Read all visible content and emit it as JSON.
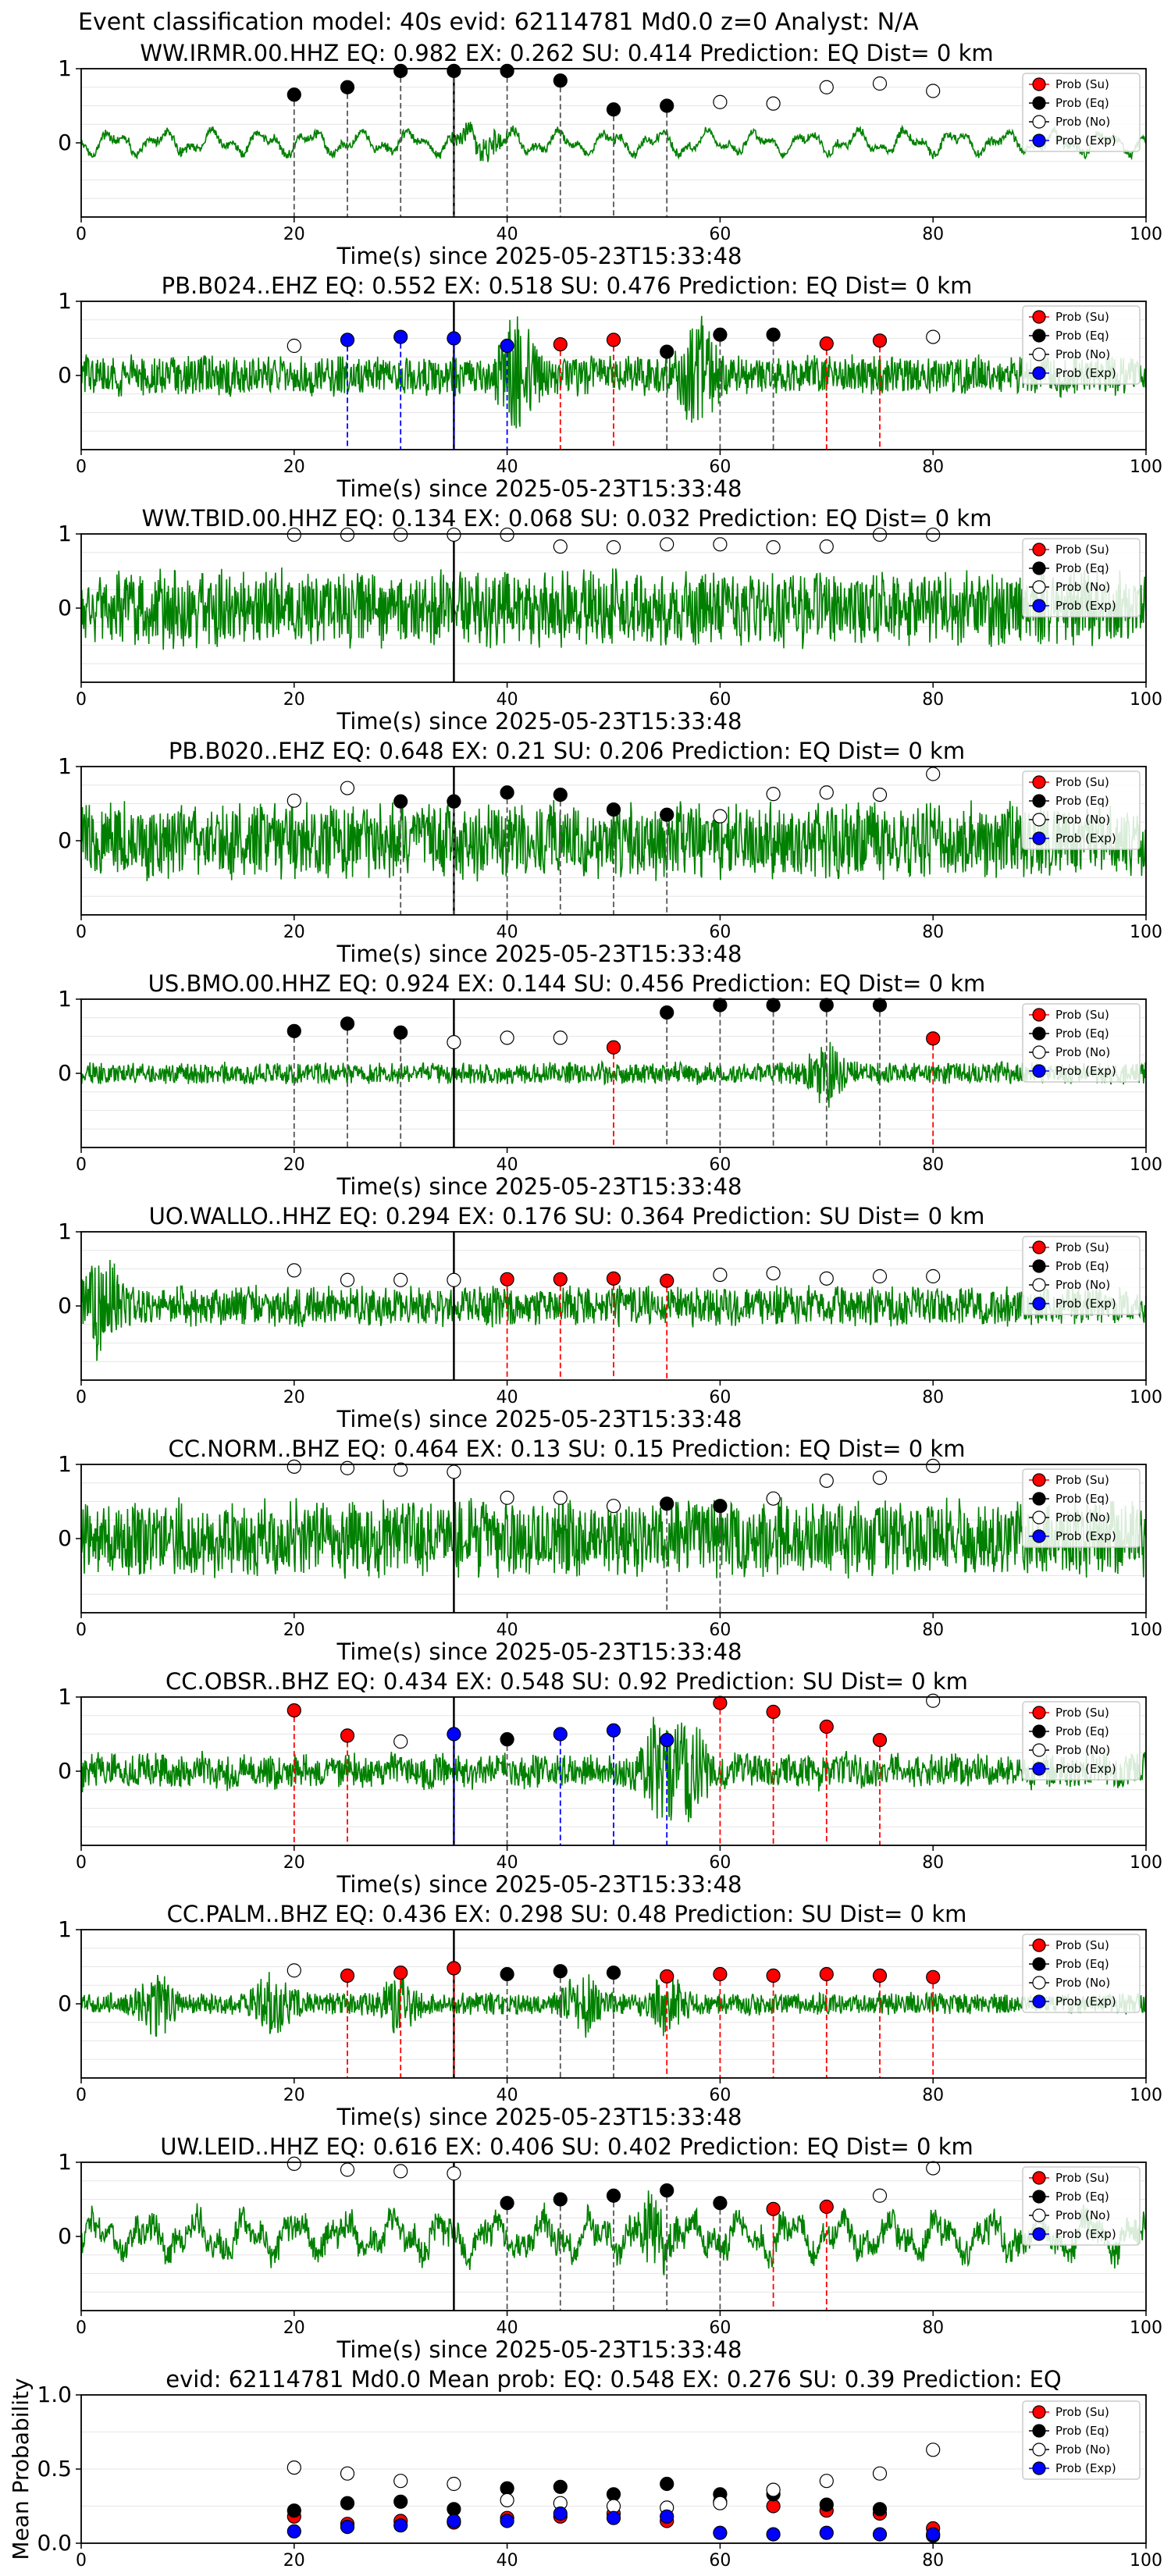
{
  "figure_title": "Event classification model: 40s evid: 62114781 Md0.0 z=0 Analyst: N/A",
  "legend_labels": [
    "Prob (Su)",
    "Prob (Eq)",
    "Prob (No)",
    "Prob (Exp)"
  ],
  "colors": {
    "Su": "#ff0000",
    "Eq": "#000000",
    "No": "#ffffff",
    "Exp": "#0000ff",
    "waveform": "#008000"
  },
  "chart_data": [
    {
      "type": "line",
      "station": "WW.IRMR.00.HHZ",
      "title": "WW.IRMR.00.HHZ   EQ: 0.982  EX: 0.262  SU: 0.414   Prediction: EQ    Dist= 0 km",
      "xlabel": "Time(s) since 2025-05-23T15:33:48",
      "xlim": [
        0,
        100
      ],
      "ylim": [
        -1,
        1
      ],
      "x_ticks": [
        0,
        20,
        40,
        60,
        80,
        100
      ],
      "y_ticks": [
        1,
        0
      ],
      "waveform_style": "oscillatory",
      "burst_times": [
        36.5,
        38.5
      ],
      "window_starts": [
        20,
        25,
        30,
        35,
        40,
        45,
        50,
        55,
        60,
        65,
        70,
        75,
        80
      ],
      "predicted": [
        "Eq",
        "Eq",
        "Eq",
        "Eq",
        "Eq",
        "Eq",
        "Eq",
        "Eq",
        "No",
        "No",
        "No",
        "No",
        "No"
      ],
      "max_prob": [
        0.65,
        0.75,
        0.97,
        0.97,
        0.97,
        0.84,
        0.45,
        0.5,
        0.55,
        0.53,
        0.75,
        0.8,
        0.7
      ]
    },
    {
      "type": "line",
      "station": "PB.B024..EHZ",
      "title": "PB.B024..EHZ   EQ: 0.552  EX: 0.518  SU: 0.476   Prediction: EQ    Dist= 0 km",
      "xlabel": "Time(s) since 2025-05-23T15:33:48",
      "xlim": [
        0,
        100
      ],
      "ylim": [
        -1,
        1
      ],
      "x_ticks": [
        0,
        20,
        40,
        60,
        80,
        100
      ],
      "y_ticks": [
        1,
        0
      ],
      "waveform_style": "noisy",
      "burst_times": [
        41,
        58
      ],
      "window_starts": [
        20,
        25,
        30,
        35,
        40,
        45,
        50,
        55,
        60,
        65,
        70,
        75,
        80
      ],
      "predicted": [
        "No",
        "Exp",
        "Exp",
        "Exp",
        "Exp",
        "Su",
        "Su",
        "Eq",
        "Eq",
        "Eq",
        "Su",
        "Su",
        "No"
      ],
      "max_prob": [
        0.4,
        0.48,
        0.52,
        0.5,
        0.4,
        0.42,
        0.48,
        0.32,
        0.55,
        0.55,
        0.43,
        0.47,
        0.52
      ]
    },
    {
      "type": "line",
      "station": "WW.TBID.00.HHZ",
      "title": "WW.TBID.00.HHZ   EQ: 0.134  EX: 0.068  SU: 0.032   Prediction: EQ    Dist= 0 km",
      "xlabel": "Time(s) since 2025-05-23T15:33:48",
      "xlim": [
        0,
        100
      ],
      "ylim": [
        -1,
        1
      ],
      "x_ticks": [
        0,
        20,
        40,
        60,
        80,
        100
      ],
      "y_ticks": [
        1,
        0
      ],
      "waveform_style": "strong",
      "burst_times": [],
      "window_starts": [
        20,
        25,
        30,
        35,
        40,
        45,
        50,
        55,
        60,
        65,
        70,
        75,
        80
      ],
      "predicted": [
        "No",
        "No",
        "No",
        "No",
        "No",
        "No",
        "No",
        "No",
        "No",
        "No",
        "No",
        "No",
        "No"
      ],
      "max_prob": [
        0.99,
        0.99,
        0.99,
        0.99,
        0.99,
        0.83,
        0.82,
        0.86,
        0.86,
        0.82,
        0.83,
        0.99,
        0.99
      ]
    },
    {
      "type": "line",
      "station": "PB.B020..EHZ",
      "title": "PB.B020..EHZ   EQ: 0.648  EX: 0.21  SU: 0.206   Prediction: EQ    Dist= 0 km",
      "xlabel": "Time(s) since 2025-05-23T15:33:48",
      "xlim": [
        0,
        100
      ],
      "ylim": [
        -1,
        1
      ],
      "x_ticks": [
        0,
        20,
        40,
        60,
        80,
        100
      ],
      "y_ticks": [
        1,
        0
      ],
      "waveform_style": "strong",
      "burst_times": [],
      "window_starts": [
        20,
        25,
        30,
        35,
        40,
        45,
        50,
        55,
        60,
        65,
        70,
        75,
        80
      ],
      "predicted": [
        "No",
        "No",
        "Eq",
        "Eq",
        "Eq",
        "Eq",
        "Eq",
        "Eq",
        "No",
        "No",
        "No",
        "No",
        "No"
      ],
      "max_prob": [
        0.54,
        0.71,
        0.53,
        0.53,
        0.65,
        0.62,
        0.42,
        0.35,
        0.33,
        0.63,
        0.65,
        0.62,
        0.9
      ]
    },
    {
      "type": "line",
      "station": "US.BMO.00.HHZ",
      "title": "US.BMO.00.HHZ   EQ: 0.924  EX: 0.144  SU: 0.456   Prediction: EQ    Dist= 0 km",
      "xlabel": "Time(s) since 2025-05-23T15:33:48",
      "xlim": [
        0,
        100
      ],
      "ylim": [
        -1,
        1
      ],
      "x_ticks": [
        0,
        20,
        40,
        60,
        80,
        100
      ],
      "y_ticks": [
        1,
        0
      ],
      "waveform_style": "quiet",
      "burst_times": [
        70
      ],
      "window_starts": [
        20,
        25,
        30,
        35,
        40,
        45,
        50,
        55,
        60,
        65,
        70,
        75,
        80
      ],
      "predicted": [
        "Eq",
        "Eq",
        "Eq",
        "No",
        "No",
        "No",
        "Su",
        "Eq",
        "Eq",
        "Eq",
        "Eq",
        "Eq",
        "Su"
      ],
      "max_prob": [
        0.57,
        0.67,
        0.55,
        0.42,
        0.48,
        0.48,
        0.35,
        0.82,
        0.92,
        0.92,
        0.92,
        0.92,
        0.47
      ]
    },
    {
      "type": "line",
      "station": "UO.WALLO..HHZ",
      "title": "UO.WALLO..HHZ   EQ: 0.294  EX: 0.176  SU: 0.364   Prediction: SU    Dist= 0 km",
      "xlabel": "Time(s) since 2025-05-23T15:33:48",
      "xlim": [
        0,
        100
      ],
      "ylim": [
        -1,
        1
      ],
      "x_ticks": [
        0,
        20,
        40,
        60,
        80,
        100
      ],
      "y_ticks": [
        1,
        0
      ],
      "waveform_style": "noisy",
      "burst_times": [
        2
      ],
      "window_starts": [
        20,
        25,
        30,
        35,
        40,
        45,
        50,
        55,
        60,
        65,
        70,
        75,
        80
      ],
      "predicted": [
        "No",
        "No",
        "No",
        "No",
        "Su",
        "Su",
        "Su",
        "Su",
        "No",
        "No",
        "No",
        "No",
        "No"
      ],
      "max_prob": [
        0.48,
        0.35,
        0.35,
        0.35,
        0.36,
        0.36,
        0.37,
        0.34,
        0.42,
        0.44,
        0.37,
        0.4,
        0.4
      ]
    },
    {
      "type": "line",
      "station": "CC.NORM..BHZ",
      "title": "CC.NORM..BHZ   EQ: 0.464  EX: 0.13  SU: 0.15   Prediction: EQ    Dist= 0 km",
      "xlabel": "Time(s) since 2025-05-23T15:33:48",
      "xlim": [
        0,
        100
      ],
      "ylim": [
        -1,
        1
      ],
      "x_ticks": [
        0,
        20,
        40,
        60,
        80,
        100
      ],
      "y_ticks": [
        1,
        0
      ],
      "waveform_style": "strong",
      "burst_times": [],
      "window_starts": [
        20,
        25,
        30,
        35,
        40,
        45,
        50,
        55,
        60,
        65,
        70,
        75,
        80
      ],
      "predicted": [
        "No",
        "No",
        "No",
        "No",
        "No",
        "No",
        "No",
        "Eq",
        "Eq",
        "No",
        "No",
        "No",
        "No"
      ],
      "max_prob": [
        0.97,
        0.95,
        0.93,
        0.9,
        0.55,
        0.55,
        0.44,
        0.47,
        0.44,
        0.54,
        0.78,
        0.82,
        0.98
      ]
    },
    {
      "type": "line",
      "station": "CC.OBSR..BHZ",
      "title": "CC.OBSR..BHZ   EQ: 0.434  EX: 0.548  SU: 0.92   Prediction: SU    Dist= 0 km",
      "xlabel": "Time(s) since 2025-05-23T15:33:48",
      "xlim": [
        0,
        100
      ],
      "ylim": [
        -1,
        1
      ],
      "x_ticks": [
        0,
        20,
        40,
        60,
        80,
        100
      ],
      "y_ticks": [
        1,
        0
      ],
      "waveform_style": "moderate",
      "burst_times": [
        54,
        57
      ],
      "window_starts": [
        20,
        25,
        30,
        35,
        40,
        45,
        50,
        55,
        60,
        65,
        70,
        75,
        80
      ],
      "predicted": [
        "Su",
        "Su",
        "No",
        "Exp",
        "Eq",
        "Exp",
        "Exp",
        "Exp",
        "Su",
        "Su",
        "Su",
        "Su",
        "No"
      ],
      "max_prob": [
        0.82,
        0.48,
        0.4,
        0.5,
        0.43,
        0.5,
        0.55,
        0.42,
        0.92,
        0.8,
        0.6,
        0.42,
        0.95
      ]
    },
    {
      "type": "line",
      "station": "CC.PALM..BHZ",
      "title": "CC.PALM..BHZ   EQ: 0.436  EX: 0.298  SU: 0.48   Prediction: SU    Dist= 0 km",
      "xlabel": "Time(s) since 2025-05-23T15:33:48",
      "xlim": [
        0,
        100
      ],
      "ylim": [
        -1,
        1
      ],
      "x_ticks": [
        0,
        20,
        40,
        60,
        80,
        100
      ],
      "y_ticks": [
        1,
        0
      ],
      "waveform_style": "quiet",
      "burst_times": [
        7,
        18,
        30,
        47,
        55
      ],
      "window_starts": [
        20,
        25,
        30,
        35,
        40,
        45,
        50,
        55,
        60,
        65,
        70,
        75,
        80
      ],
      "predicted": [
        "No",
        "Su",
        "Su",
        "Su",
        "Eq",
        "Eq",
        "Eq",
        "Su",
        "Su",
        "Su",
        "Su",
        "Su",
        "Su"
      ],
      "max_prob": [
        0.45,
        0.38,
        0.42,
        0.48,
        0.4,
        0.44,
        0.42,
        0.37,
        0.4,
        0.38,
        0.4,
        0.38,
        0.36
      ]
    },
    {
      "type": "line",
      "station": "UW.LEID..HHZ",
      "title": "UW.LEID..HHZ   EQ: 0.616  EX: 0.406  SU: 0.402   Prediction: EQ    Dist= 0 km",
      "xlabel": "Time(s) since 2025-05-23T15:33:48",
      "xlim": [
        0,
        100
      ],
      "ylim": [
        -1,
        1
      ],
      "x_ticks": [
        0,
        20,
        40,
        60,
        80,
        100
      ],
      "y_ticks": [
        1,
        0
      ],
      "waveform_style": "rough",
      "burst_times": [
        54
      ],
      "window_starts": [
        20,
        25,
        30,
        35,
        40,
        45,
        50,
        55,
        60,
        65,
        70,
        75,
        80
      ],
      "predicted": [
        "No",
        "No",
        "No",
        "No",
        "Eq",
        "Eq",
        "Eq",
        "Eq",
        "Eq",
        "Su",
        "Su",
        "No",
        "No"
      ],
      "max_prob": [
        0.98,
        0.9,
        0.88,
        0.85,
        0.45,
        0.5,
        0.55,
        0.62,
        0.45,
        0.37,
        0.4,
        0.55,
        0.92
      ]
    },
    {
      "type": "scatter",
      "title": "evid: 62114781   Md0.0    Mean prob:    EQ: 0.548  EX: 0.276  SU: 0.39   Prediction: EQ",
      "ylabel": "Mean Probability",
      "xlim": [
        0,
        100
      ],
      "ylim": [
        0,
        1
      ],
      "x_ticks": [
        0,
        20,
        40,
        60,
        80,
        100
      ],
      "y_ticks": [
        0.0,
        0.5,
        1.0
      ],
      "x": [
        20,
        25,
        30,
        35,
        40,
        45,
        50,
        55,
        60,
        65,
        70,
        75,
        80
      ],
      "series": [
        {
          "name": "Prob (Su)",
          "key": "Su",
          "values": [
            0.18,
            0.13,
            0.15,
            0.14,
            0.17,
            0.18,
            0.2,
            0.15,
            0.28,
            0.25,
            0.22,
            0.2,
            0.1
          ]
        },
        {
          "name": "Prob (Eq)",
          "key": "Eq",
          "values": [
            0.22,
            0.27,
            0.28,
            0.23,
            0.37,
            0.38,
            0.33,
            0.4,
            0.33,
            0.33,
            0.26,
            0.23,
            0.05
          ]
        },
        {
          "name": "Prob (No)",
          "key": "No",
          "values": [
            0.51,
            0.47,
            0.42,
            0.4,
            0.29,
            0.27,
            0.25,
            0.24,
            0.27,
            0.36,
            0.42,
            0.47,
            0.63
          ]
        },
        {
          "name": "Prob (Exp)",
          "key": "Exp",
          "values": [
            0.08,
            0.11,
            0.12,
            0.15,
            0.15,
            0.2,
            0.17,
            0.18,
            0.07,
            0.06,
            0.07,
            0.06,
            0.06
          ]
        }
      ]
    }
  ]
}
